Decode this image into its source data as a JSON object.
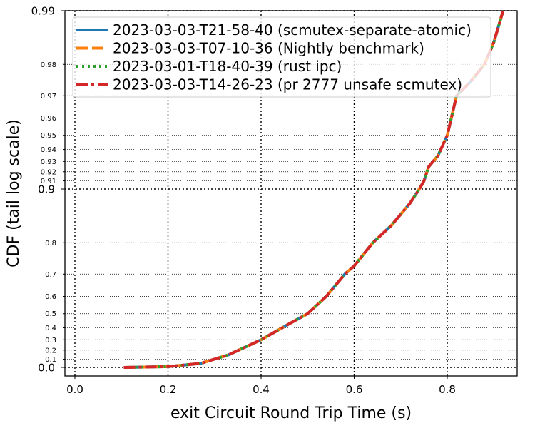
{
  "chart_data": {
    "type": "line",
    "title": "",
    "xlabel": "exit Circuit Round Trip Time (s)",
    "ylabel": "CDF (tail log scale)",
    "xlim": [
      -0.02,
      0.95
    ],
    "x_ticks": [
      0.0,
      0.2,
      0.4,
      0.6,
      0.8
    ],
    "x_tick_labels": [
      "0.0",
      "0.2",
      "0.4",
      "0.6",
      "0.8"
    ],
    "y_scale": "tail-log",
    "ylim": [
      0.0,
      0.99
    ],
    "y_major_ticks": [
      0.0,
      0.9,
      0.99
    ],
    "y_major_labels": [
      "0.0",
      "0.9",
      "0.99"
    ],
    "y_minor_ticks": [
      0.1,
      0.2,
      0.3,
      0.4,
      0.5,
      0.6,
      0.7,
      0.8,
      0.91,
      0.92,
      0.93,
      0.94,
      0.95,
      0.96,
      0.97,
      0.98
    ],
    "y_minor_labels": [
      "0.1",
      "0.2",
      "0.3",
      "0.4",
      "0.5",
      "0.6",
      "0.7",
      "0.8",
      "0.91",
      "0.92",
      "0.93",
      "0.94",
      "0.95",
      "0.96",
      "0.97",
      "0.98"
    ],
    "grid": true,
    "legend_position": "top",
    "series": [
      {
        "name": "2023-03-03-T21-58-40 (scmutex-separate-atomic)",
        "color": "#1f77b4",
        "dash": "solid",
        "x": [
          0.105,
          0.2,
          0.27,
          0.33,
          0.4,
          0.46,
          0.5,
          0.54,
          0.58,
          0.6,
          0.64,
          0.68,
          0.72,
          0.74,
          0.75,
          0.76,
          0.78,
          0.8,
          0.82,
          0.85,
          0.88,
          0.9,
          0.92
        ],
        "y": [
          0.0,
          0.01,
          0.05,
          0.15,
          0.3,
          0.43,
          0.5,
          0.6,
          0.7,
          0.73,
          0.8,
          0.84,
          0.88,
          0.9,
          0.91,
          0.925,
          0.935,
          0.95,
          0.97,
          0.975,
          0.98,
          0.985,
          0.99
        ]
      },
      {
        "name": "2023-03-03-T07-10-36 (Nightly benchmark)",
        "color": "#ff7f0e",
        "dash": "dashed",
        "x": [
          0.105,
          0.2,
          0.27,
          0.33,
          0.4,
          0.46,
          0.5,
          0.54,
          0.58,
          0.6,
          0.64,
          0.68,
          0.72,
          0.74,
          0.75,
          0.76,
          0.78,
          0.8,
          0.82,
          0.85,
          0.88,
          0.9,
          0.92
        ],
        "y": [
          0.0,
          0.01,
          0.05,
          0.15,
          0.3,
          0.43,
          0.5,
          0.6,
          0.7,
          0.73,
          0.8,
          0.84,
          0.88,
          0.9,
          0.91,
          0.925,
          0.935,
          0.95,
          0.97,
          0.975,
          0.98,
          0.985,
          0.99
        ]
      },
      {
        "name": "2023-03-01-T18-40-39 (rust ipc)",
        "color": "#2ca02c",
        "dash": "dotted",
        "x": [
          0.105,
          0.2,
          0.27,
          0.33,
          0.4,
          0.46,
          0.5,
          0.54,
          0.58,
          0.6,
          0.64,
          0.68,
          0.72,
          0.74,
          0.75,
          0.76,
          0.78,
          0.8,
          0.82,
          0.85,
          0.88,
          0.9,
          0.92
        ],
        "y": [
          0.0,
          0.01,
          0.05,
          0.15,
          0.3,
          0.43,
          0.5,
          0.6,
          0.7,
          0.73,
          0.8,
          0.84,
          0.88,
          0.9,
          0.91,
          0.925,
          0.935,
          0.95,
          0.97,
          0.975,
          0.98,
          0.985,
          0.99
        ]
      },
      {
        "name": "2023-03-03-T14-26-23 (pr 2777 unsafe scmutex)",
        "color": "#d62728",
        "dash": "dashdot",
        "x": [
          0.105,
          0.2,
          0.27,
          0.33,
          0.4,
          0.46,
          0.5,
          0.54,
          0.58,
          0.6,
          0.64,
          0.68,
          0.72,
          0.74,
          0.75,
          0.76,
          0.78,
          0.8,
          0.82,
          0.85,
          0.88,
          0.9,
          0.92
        ],
        "y": [
          0.0,
          0.01,
          0.05,
          0.15,
          0.3,
          0.43,
          0.5,
          0.6,
          0.7,
          0.73,
          0.8,
          0.84,
          0.88,
          0.9,
          0.91,
          0.925,
          0.935,
          0.95,
          0.97,
          0.975,
          0.98,
          0.985,
          0.99
        ]
      }
    ]
  }
}
